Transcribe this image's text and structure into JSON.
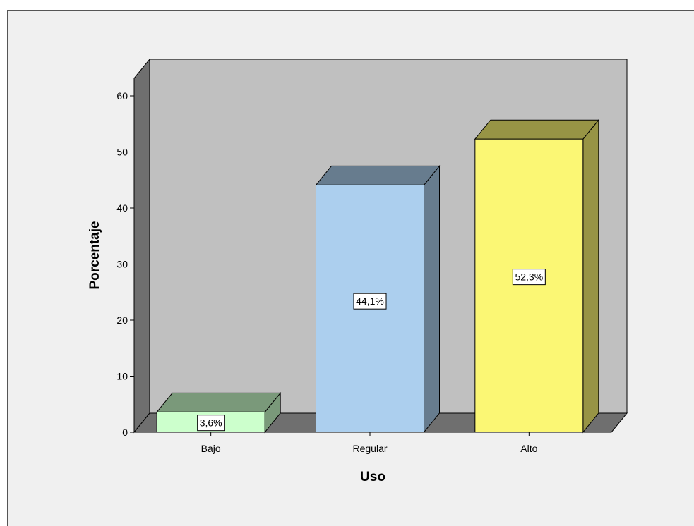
{
  "chart_data": {
    "type": "bar",
    "categories": [
      "Bajo",
      "Regular",
      "Alto"
    ],
    "values": [
      3.6,
      44.1,
      52.3
    ],
    "data_labels": [
      "3,6%",
      "44,1%",
      "52,3%"
    ],
    "xlabel": "Uso",
    "ylabel": "Porcentaje",
    "ylim": [
      0,
      60
    ],
    "yticks": [
      0,
      10,
      20,
      30,
      40,
      50,
      60
    ],
    "grid": false,
    "three_d": true,
    "colors": {
      "back_wall": "#c0c0c0",
      "side_wall": "#6f6f6f",
      "floor": "#6f6f6f",
      "bar_fronts": [
        "#ccffcc",
        "#accfee",
        "#fbf774"
      ],
      "bar_tops": [
        "#7a997a",
        "#677c8e",
        "#979445"
      ],
      "bar_sides": [
        "#7a997a",
        "#677c8e",
        "#979445"
      ]
    }
  }
}
